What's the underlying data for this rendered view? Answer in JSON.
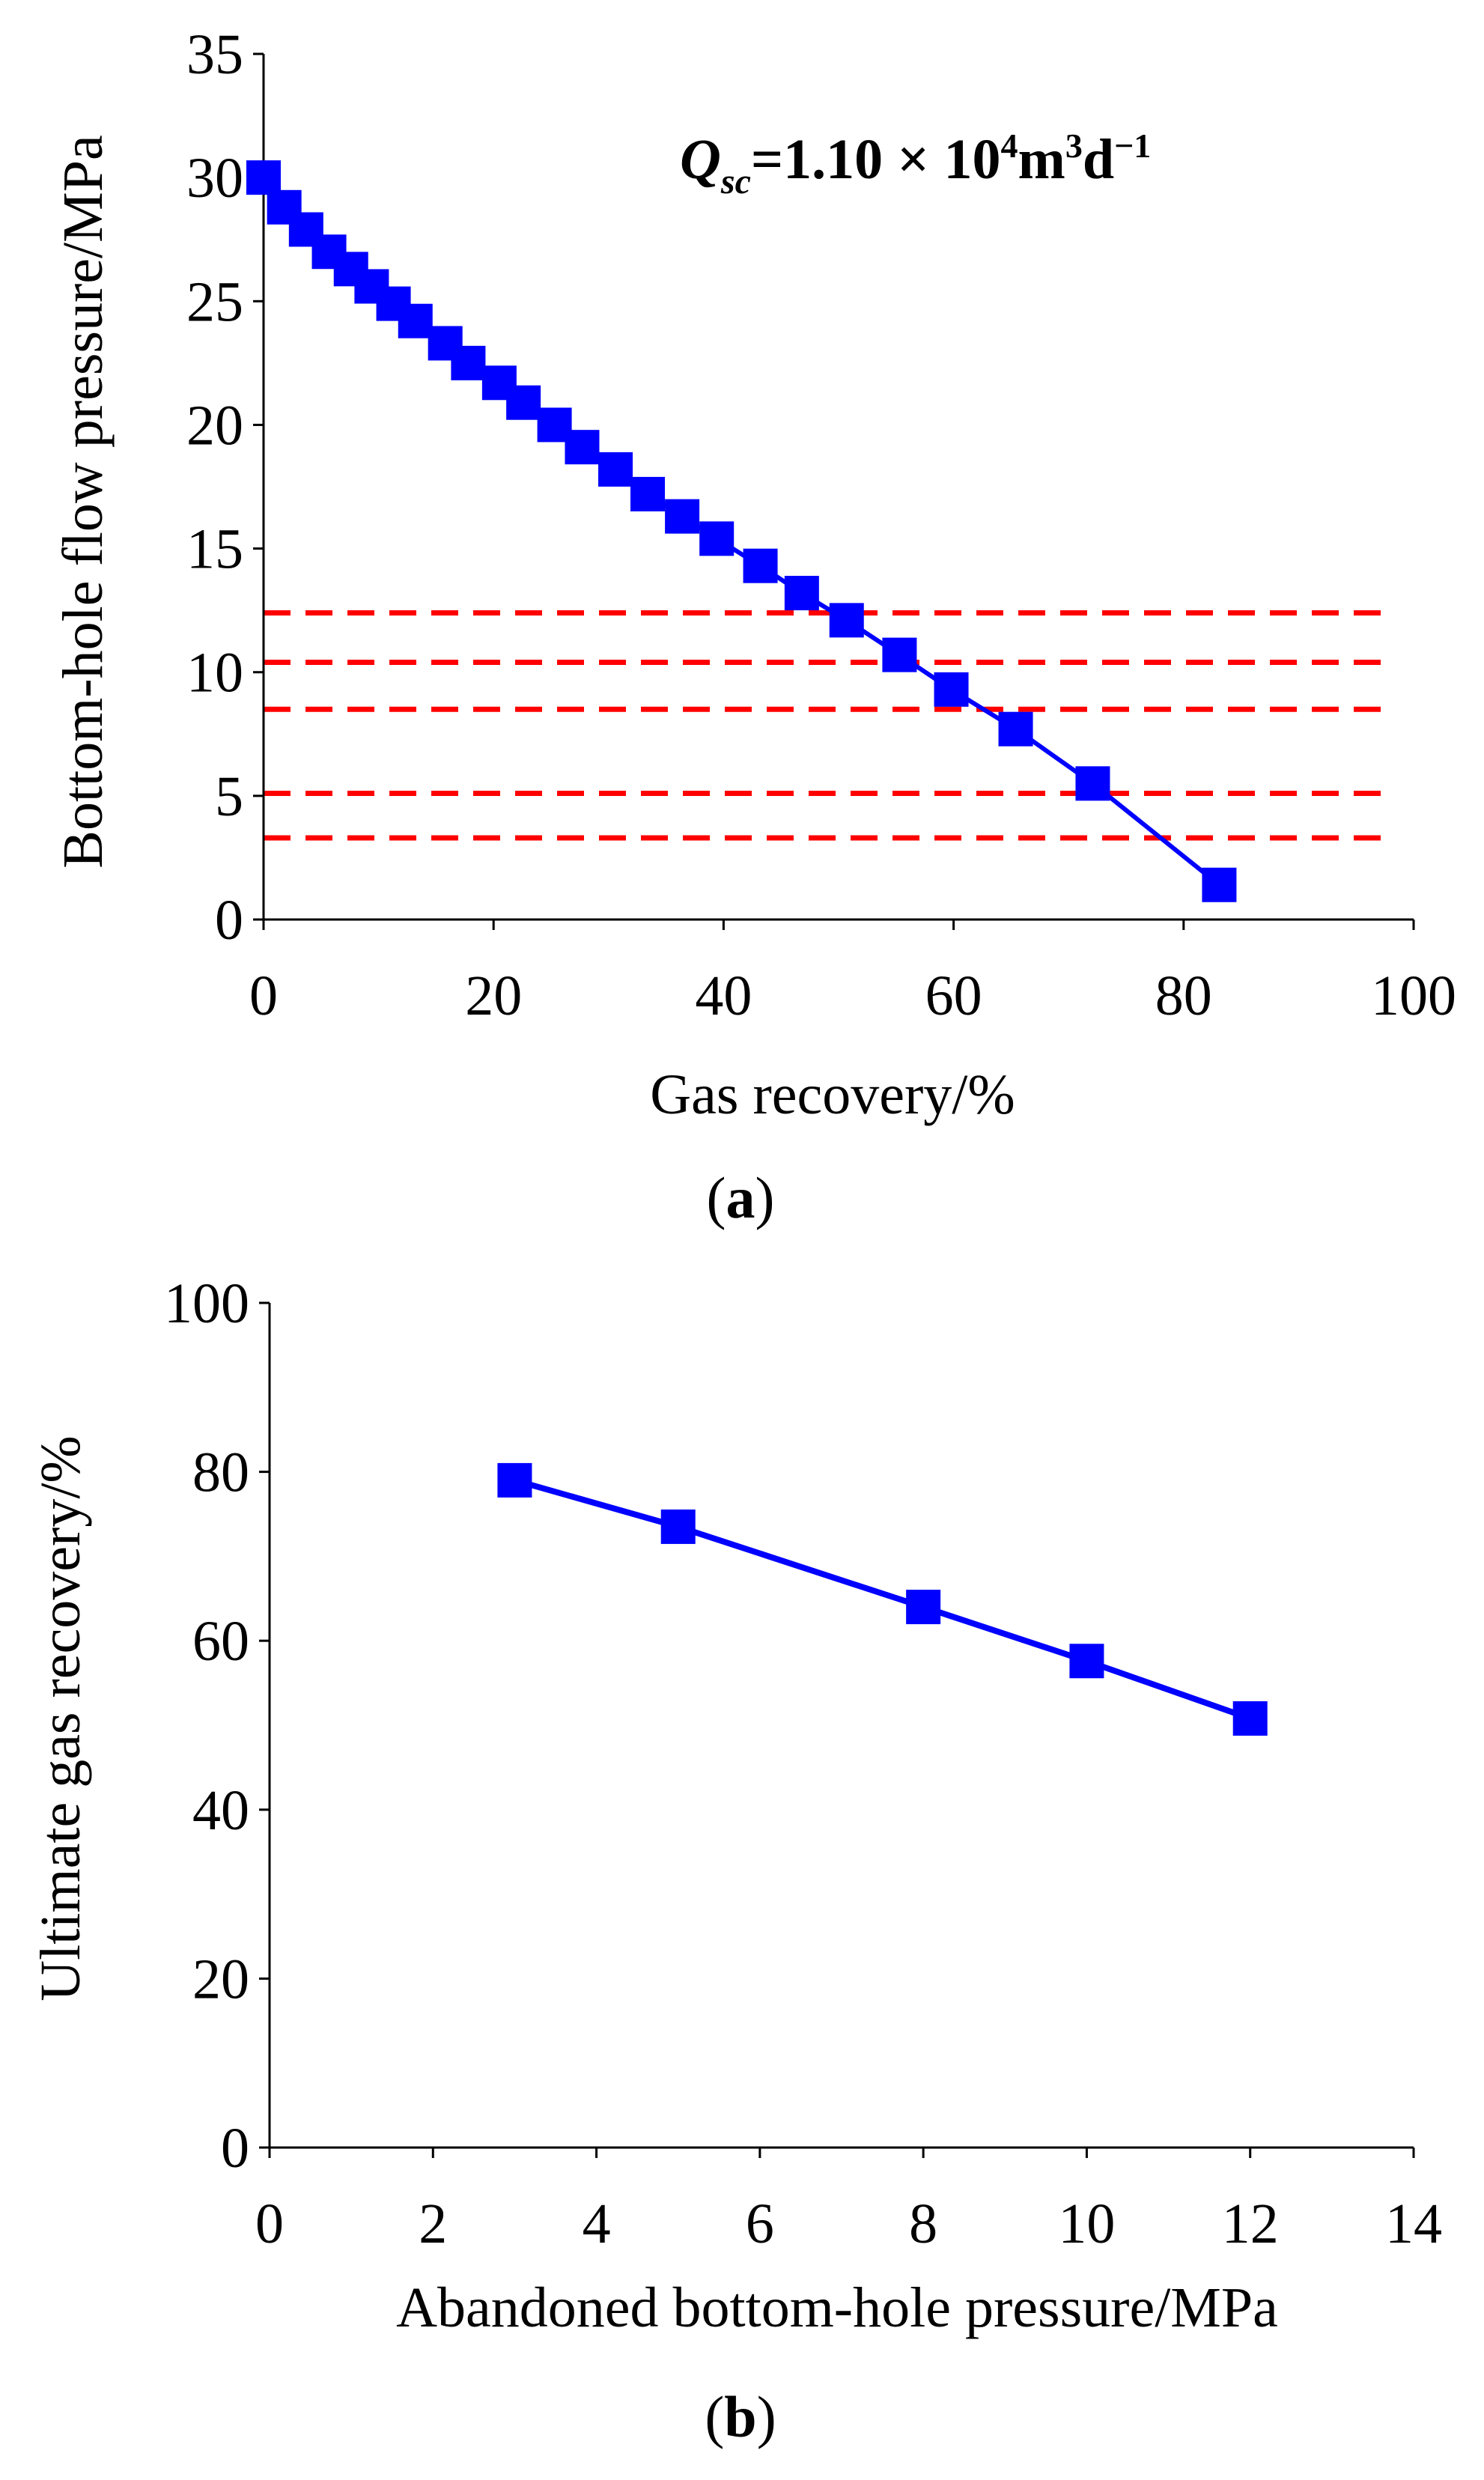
{
  "chart_data": [
    {
      "type": "line",
      "panel": "a",
      "caption": {
        "open": "(",
        "letter": "a",
        "close": ")"
      },
      "xlabel": "Gas recovery/%",
      "ylabel": "Bottom-hole flow pressure/MPa",
      "xlim": [
        0,
        100
      ],
      "ylim": [
        0,
        35
      ],
      "xticks": [
        0,
        20,
        40,
        60,
        80,
        100
      ],
      "yticks": [
        0,
        5,
        10,
        15,
        20,
        25,
        30,
        35
      ],
      "annotation": {
        "q": "Q",
        "sub": "sc",
        "eq": "=1.10 × 10",
        "exp1": "4",
        "m": "m",
        "exp2": "3",
        "d": "d",
        "exp3": "−1"
      },
      "series": [
        {
          "name": "Bottom-hole flow pressure",
          "color": "#0000ff",
          "marker": "square",
          "x": [
            0,
            1.8,
            3.7,
            5.7,
            7.6,
            9.4,
            11.3,
            13.2,
            15.8,
            17.8,
            20.5,
            22.6,
            25.3,
            27.7,
            30.6,
            33.4,
            36.4,
            39.4,
            43.2,
            46.8,
            50.7,
            55.3,
            59.8,
            65.4,
            72.1,
            83.1
          ],
          "y": [
            30.0,
            28.8,
            27.9,
            27.0,
            26.3,
            25.6,
            24.9,
            24.2,
            23.3,
            22.5,
            21.7,
            20.9,
            20.0,
            19.1,
            18.2,
            17.2,
            16.3,
            15.4,
            14.3,
            13.2,
            12.1,
            10.7,
            9.3,
            7.7,
            5.5,
            1.4
          ]
        }
      ],
      "reference_lines": {
        "color": "#ff0000",
        "style": "dashed",
        "y": [
          12.4,
          10.4,
          8.5,
          5.1,
          3.3
        ]
      }
    },
    {
      "type": "line",
      "panel": "b",
      "caption": {
        "open": "(",
        "letter": "b",
        "close": ")"
      },
      "xlabel": "Abandoned bottom-hole pressure/MPa",
      "ylabel": "Ultimate gas recovery/%",
      "xlim": [
        0,
        14
      ],
      "ylim": [
        0,
        100
      ],
      "xticks": [
        0,
        2,
        4,
        6,
        8,
        10,
        12,
        14
      ],
      "yticks": [
        0,
        20,
        40,
        60,
        80,
        100
      ],
      "series": [
        {
          "name": "Ultimate gas recovery",
          "color": "#0000ff",
          "marker": "square",
          "x": [
            3,
            5,
            8,
            10,
            12
          ],
          "y": [
            79.0,
            73.5,
            64.0,
            57.6,
            50.8
          ]
        }
      ]
    }
  ]
}
